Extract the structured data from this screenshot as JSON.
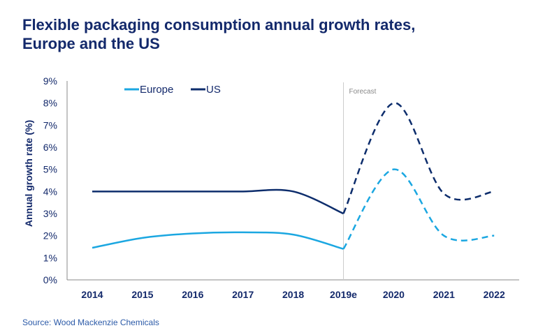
{
  "title_line1": "Flexible packaging consumption annual growth rates,",
  "title_line2": "Europe and the US",
  "source": "Source: Wood Mackenzie Chemicals",
  "chart_data": {
    "type": "line",
    "categories": [
      "2014",
      "2015",
      "2016",
      "2017",
      "2018",
      "2019e",
      "2020",
      "2021",
      "2022"
    ],
    "ylabel": "Annual growth rate (%)",
    "ylim": [
      0,
      9
    ],
    "yticks": [
      "0%",
      "1%",
      "2%",
      "3%",
      "4%",
      "5%",
      "6%",
      "7%",
      "8%",
      "9%"
    ],
    "annotation": "Forecast",
    "forecast_from": "2019e",
    "grid": false,
    "legend": "top-left",
    "series": [
      {
        "name": "Europe",
        "color": "#1ba7e1",
        "values": [
          1.45,
          1.9,
          2.1,
          2.15,
          2.05,
          1.4,
          5.0,
          2.0,
          2.0
        ]
      },
      {
        "name": "US",
        "color": "#0d2d6c",
        "values": [
          4.0,
          4.0,
          4.0,
          4.0,
          4.0,
          3.0,
          8.0,
          3.9,
          4.0
        ]
      }
    ]
  }
}
